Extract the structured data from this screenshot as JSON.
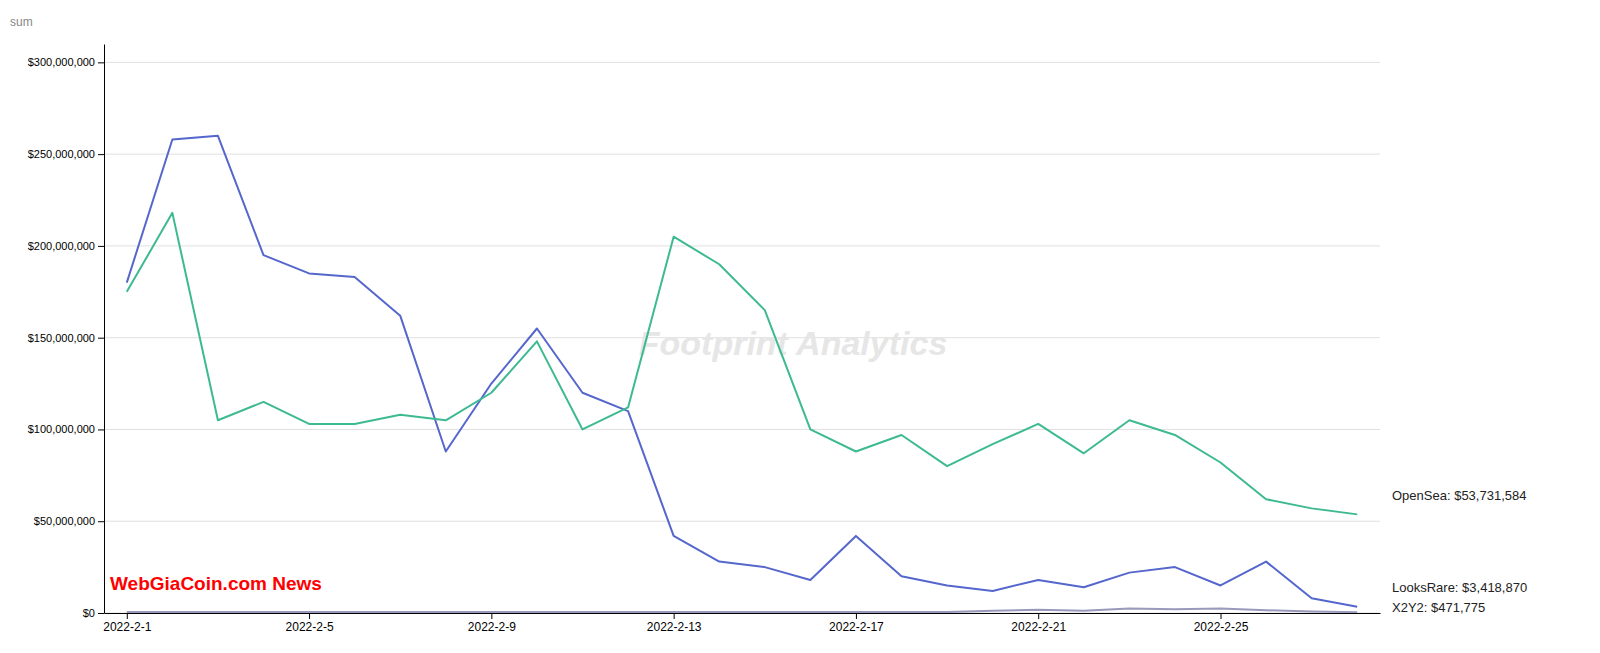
{
  "chart_data": {
    "type": "line",
    "y_label": "sum",
    "categories": [
      "2022-2-1",
      null,
      null,
      null,
      "2022-2-5",
      null,
      null,
      null,
      "2022-2-9",
      null,
      null,
      null,
      "2022-2-13",
      null,
      null,
      null,
      "2022-2-17",
      null,
      null,
      null,
      "2022-2-21",
      null,
      null,
      null,
      "2022-2-25",
      null,
      null,
      null
    ],
    "series": [
      {
        "color": "#5566cc",
        "values": [
          180000000,
          258000000,
          260000000,
          195000000,
          185000000,
          183000000,
          162000000,
          88000000,
          125000000,
          155000000,
          120000000,
          110000000,
          42000000,
          28000000,
          25000000,
          18000000,
          42000000,
          20000000,
          15000000,
          12000000,
          18000000,
          14000000,
          22000000,
          25000000,
          15000000,
          28000000,
          8000000,
          3418870
        ]
      },
      {
        "color": "#3dba8f",
        "values": [
          175000000,
          218000000,
          105000000,
          115000000,
          103000000,
          103000000,
          108000000,
          105000000,
          120000000,
          148000000,
          100000000,
          112000000,
          205000000,
          190000000,
          165000000,
          100000000,
          88000000,
          97000000,
          80000000,
          92000000,
          103000000,
          87000000,
          105000000,
          97000000,
          82000000,
          62000000,
          57000000,
          53731584
        ]
      },
      {
        "color": "#9999bb",
        "values": [
          500000,
          500000,
          500000,
          500000,
          500000,
          500000,
          500000,
          500000,
          500000,
          500000,
          500000,
          500000,
          500000,
          500000,
          500000,
          500000,
          500000,
          500000,
          500000,
          1200000,
          1800000,
          1200000,
          2500000,
          2000000,
          2500000,
          1500000,
          800000,
          471775
        ]
      }
    ],
    "ylim": [
      0,
      310000000
    ],
    "yticks": [
      {
        "value": 0,
        "label": "$0"
      },
      {
        "value": 50000000,
        "label": "$50,000,000"
      },
      {
        "value": 100000000,
        "label": "$100,000,000"
      },
      {
        "value": 150000000,
        "label": "$150,000,000"
      },
      {
        "value": 200000000,
        "label": "$200,000,000"
      },
      {
        "value": 250000000,
        "label": "$250,000,000"
      },
      {
        "value": 300000000,
        "label": "$300,000,000"
      }
    ],
    "grid": true,
    "annotations": [
      {
        "text": "OpenSea: $53,731,584",
        "series": 1
      },
      {
        "text": "LooksRare: $3,418,870",
        "series": 0
      },
      {
        "text": "X2Y2: $471,775",
        "series": 2
      },
      {
        "text": "Footprint Analytics"
      },
      {
        "text": "WebGiaCoin.com News",
        "color": "#ff0000"
      }
    ]
  }
}
